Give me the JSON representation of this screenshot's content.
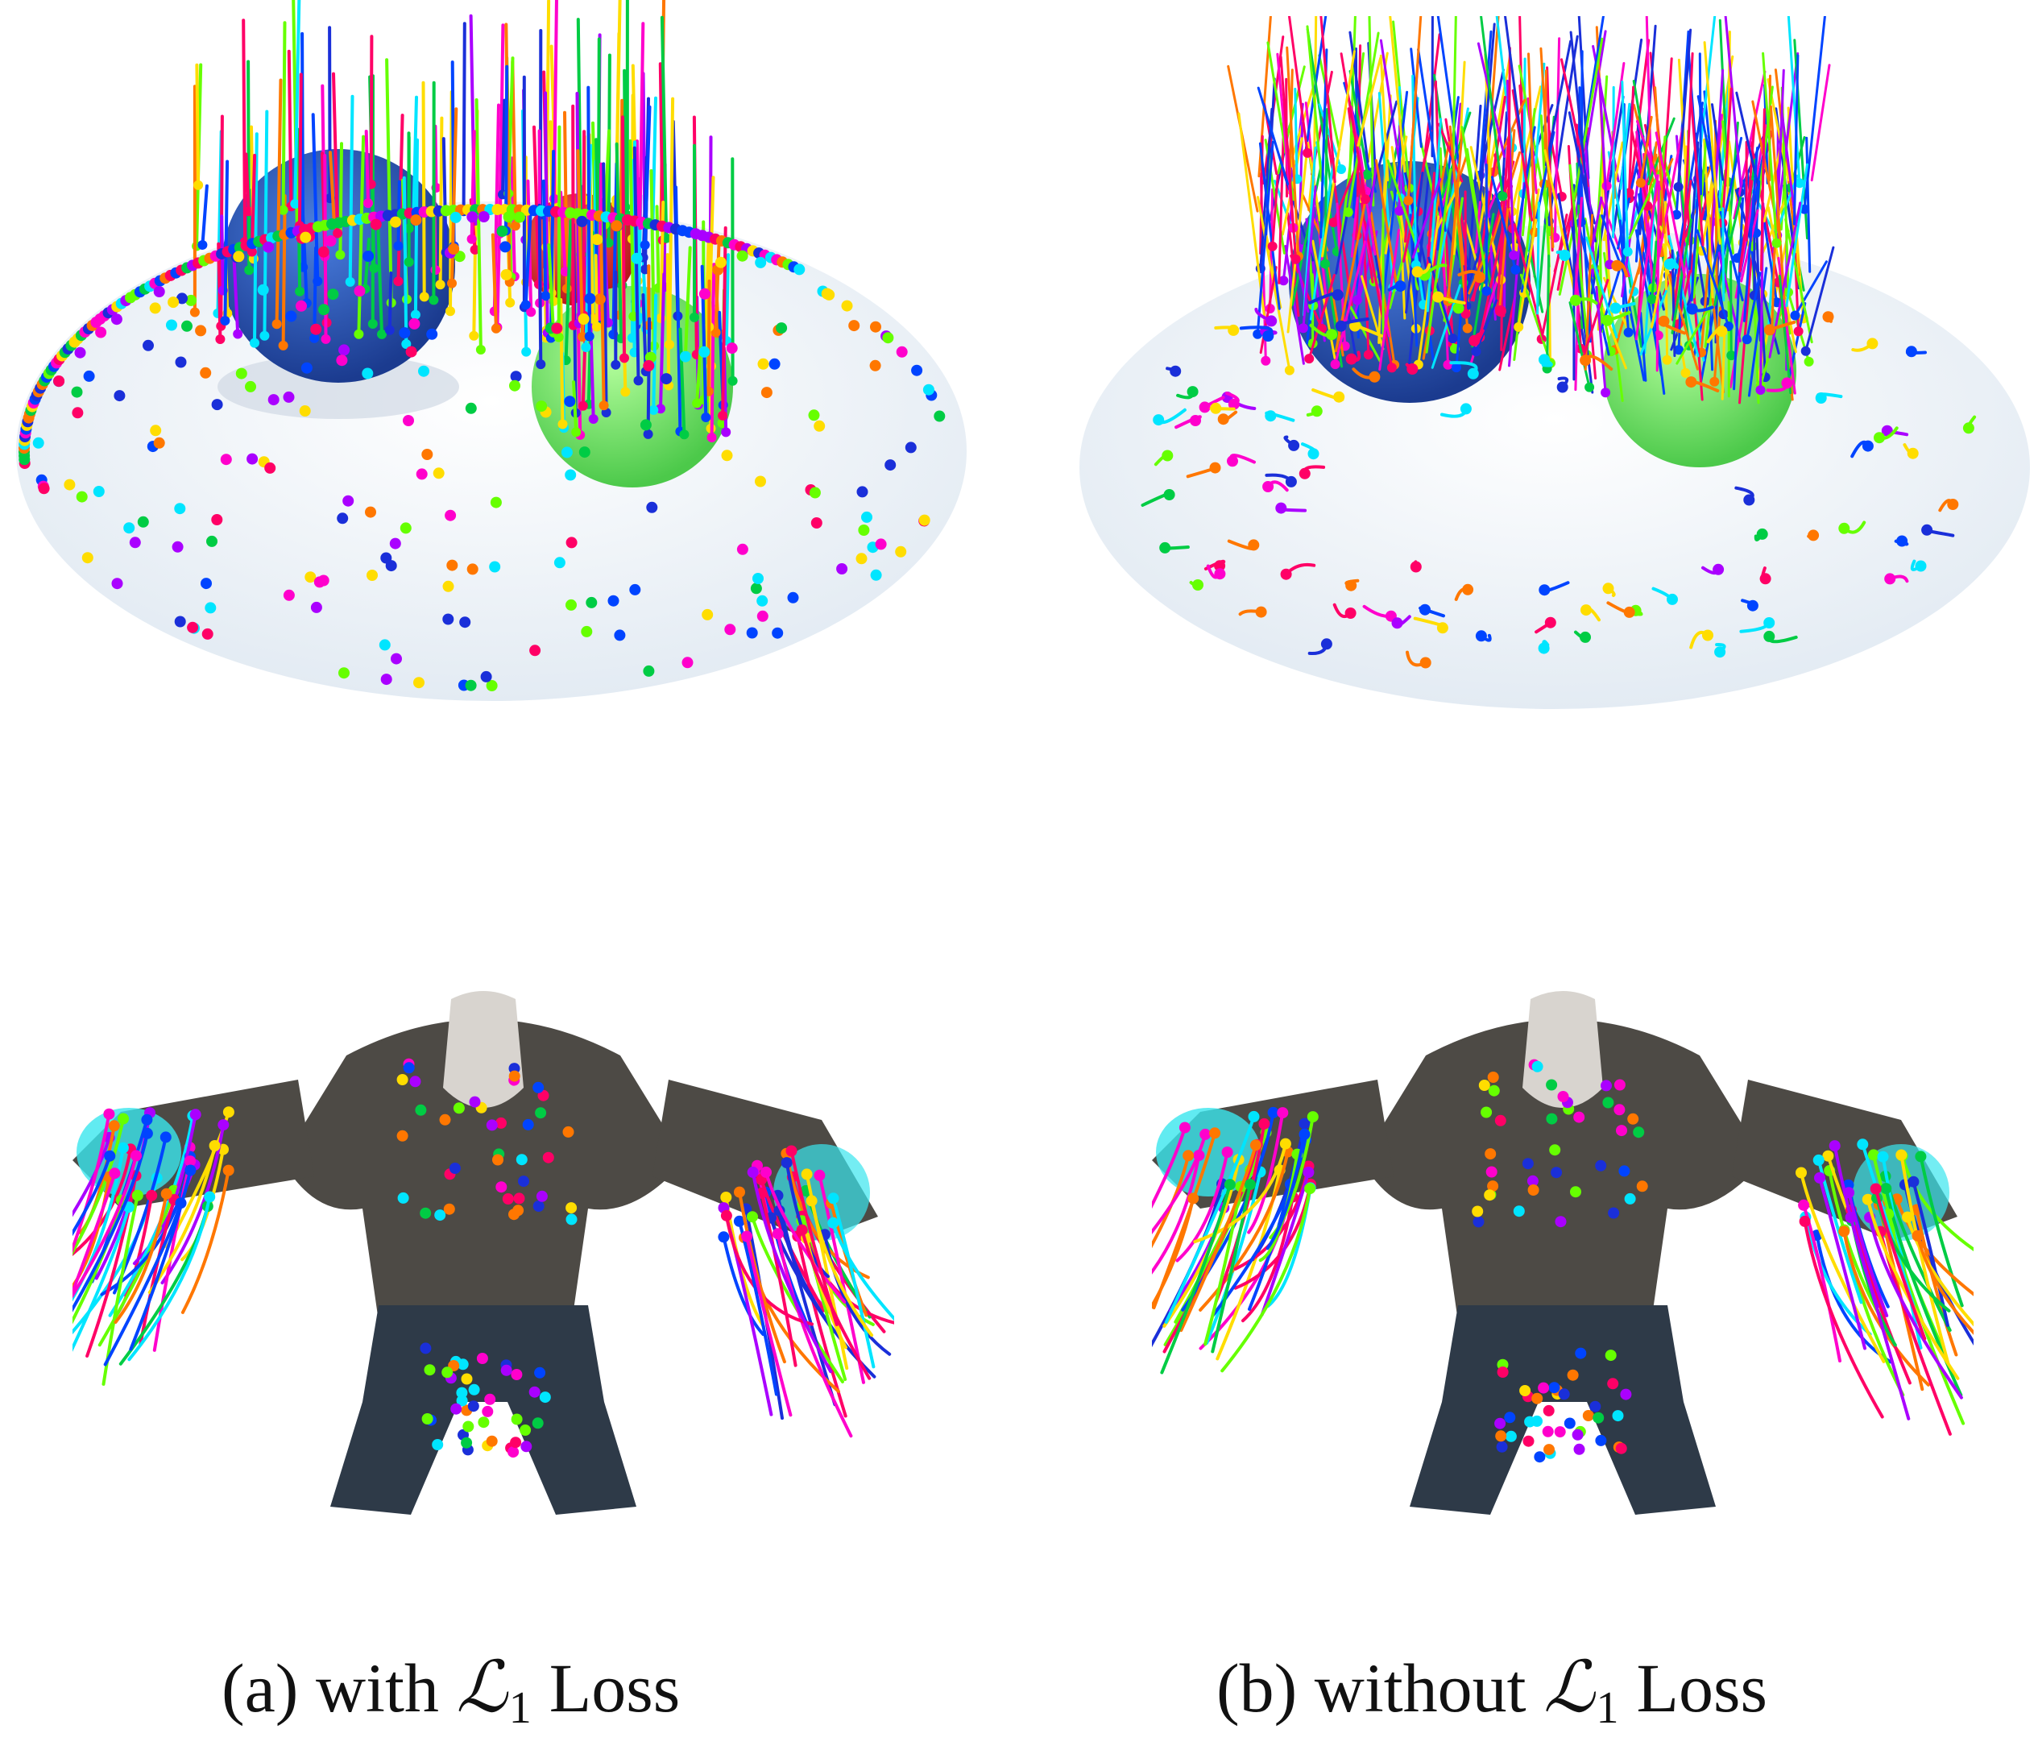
{
  "panels": [
    {
      "id": "a",
      "caption_prefix": "(a) with",
      "symbol": "ℒ",
      "subscript": "1",
      "caption_suffix": "Loss"
    },
    {
      "id": "b",
      "caption_prefix": "(b) without",
      "symbol": "ℒ",
      "subscript": "1",
      "caption_suffix": "Loss"
    }
  ],
  "colors": {
    "track_palette": [
      "#ff0066",
      "#0044ff",
      "#00cc44",
      "#00e5ff",
      "#ffdd00",
      "#aa00ff",
      "#ff7700",
      "#66ff00",
      "#ff00cc",
      "#1a2fd9"
    ],
    "plate": "#f4f8fc",
    "sphere_blue": "#2b56b8",
    "sphere_red": "#e3262e",
    "sphere_green": "#6fe36a",
    "creature_skin": "#4d4a45",
    "creature_jeans": "#2e3a48",
    "creature_glow": "#39e6ee"
  },
  "icons": [
    "sphere-scene-render",
    "creature-render",
    "point-tracks"
  ]
}
